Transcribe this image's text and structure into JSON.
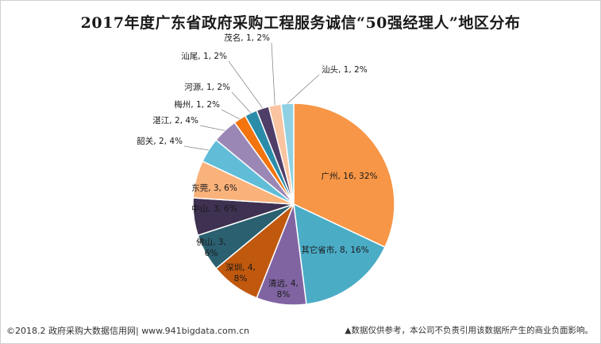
{
  "chart_data": {
    "type": "pie",
    "title": "2017年度广东省政府采购工程服务诚信“50强经理人”地区分布",
    "slices": [
      {
        "name": "广州",
        "value": 16,
        "percent": "32%",
        "color": "#f79646"
      },
      {
        "name": "其它省市",
        "value": 8,
        "percent": "16%",
        "color": "#4bacc6"
      },
      {
        "name": "清远",
        "value": 4,
        "percent": "8%",
        "color": "#8064a2"
      },
      {
        "name": "深圳",
        "value": 4,
        "percent": "8%",
        "color": "#c0580d"
      },
      {
        "name": "佛山",
        "value": 3,
        "percent": "6%",
        "color": "#2a6070"
      },
      {
        "name": "中山",
        "value": 3,
        "percent": "6%",
        "color": "#3f3151"
      },
      {
        "name": "东莞",
        "value": 3,
        "percent": "6%",
        "color": "#fab27b"
      },
      {
        "name": "韶关",
        "value": 2,
        "percent": "4%",
        "color": "#61bdd7"
      },
      {
        "name": "湛江",
        "value": 2,
        "percent": "4%",
        "color": "#9b87b6"
      },
      {
        "name": "梅州",
        "value": 1,
        "percent": "2%",
        "color": "#f3740e"
      },
      {
        "name": "河源",
        "value": 1,
        "percent": "2%",
        "color": "#2b8ca9"
      },
      {
        "name": "汕尾",
        "value": 1,
        "percent": "2%",
        "color": "#4f3e68"
      },
      {
        "name": "茂名",
        "value": 1,
        "percent": "2%",
        "color": "#fac4a0"
      },
      {
        "name": "汕头",
        "value": 1,
        "percent": "2%",
        "color": "#8fd1e2"
      }
    ]
  },
  "footer": {
    "source": "©2018.2 政府采购大数据信用网| www.941bigdata.com.cn",
    "disclaimer": "▲数据仅供参考，本公司不负责引用该数据所产生的商业负面影响。"
  }
}
